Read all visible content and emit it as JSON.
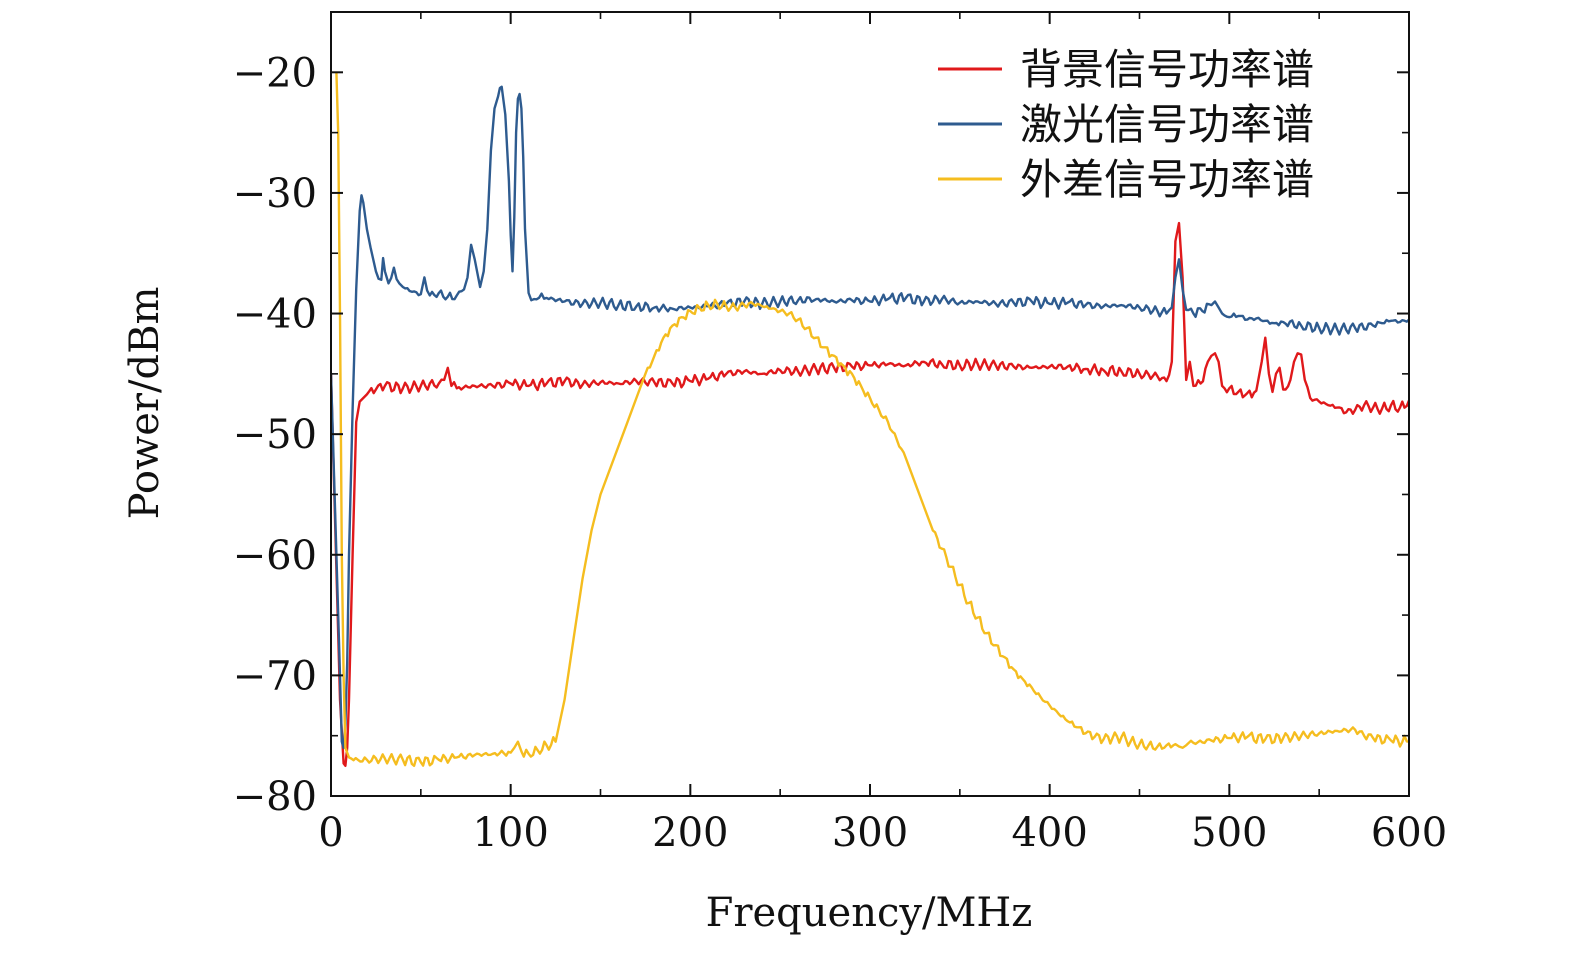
{
  "chart_data": {
    "type": "line",
    "xlabel": "Frequency/MHz",
    "ylabel": "Power/dBm",
    "xlim": [
      0,
      600
    ],
    "ylim": [
      -80,
      -15
    ],
    "xticks": [
      0,
      100,
      200,
      300,
      400,
      500,
      600
    ],
    "xtick_labels": [
      "0",
      "100",
      "200",
      "300",
      "400",
      "500",
      "600"
    ],
    "yticks": [
      -20,
      -30,
      -40,
      -50,
      -60,
      -70,
      -80
    ],
    "ytick_labels": [
      "−20",
      "−30",
      "−40",
      "−50",
      "−60",
      "−70",
      "−80"
    ],
    "grid": false,
    "legend_position": "top-right",
    "series": [
      {
        "name": "背景信号功率谱",
        "color": "#e0191b",
        "x": [
          0,
          5,
          7,
          8,
          9,
          10,
          12,
          14,
          16,
          18,
          20,
          25,
          30,
          40,
          50,
          60,
          63,
          65,
          67,
          70,
          80,
          90,
          100,
          110,
          120,
          130,
          140,
          150,
          160,
          170,
          180,
          190,
          200,
          210,
          220,
          230,
          240,
          250,
          260,
          270,
          280,
          290,
          300,
          310,
          320,
          330,
          340,
          350,
          360,
          370,
          380,
          390,
          400,
          410,
          420,
          430,
          440,
          450,
          460,
          465,
          468,
          470,
          472,
          474,
          476,
          478,
          480,
          484,
          488,
          490,
          492,
          494,
          496,
          500,
          505,
          510,
          515,
          518,
          520,
          522,
          524,
          526,
          528,
          530,
          534,
          536,
          538,
          540,
          542,
          545,
          550,
          555,
          560,
          565,
          570,
          575,
          580,
          585,
          590,
          595,
          600
        ],
        "y": [
          -45,
          -72,
          -77.3,
          -77.5,
          -76,
          -72,
          -60,
          -49,
          -47.3,
          -47,
          -46.7,
          -46.3,
          -46,
          -46.2,
          -46,
          -45.8,
          -45.5,
          -44.5,
          -46,
          -46.2,
          -46,
          -46,
          -45.8,
          -46,
          -45.8,
          -45.6,
          -45.9,
          -45.7,
          -45.8,
          -45.6,
          -45.7,
          -45.8,
          -45.6,
          -45.4,
          -45,
          -44.8,
          -45,
          -44.7,
          -44.8,
          -44.6,
          -44.5,
          -44.4,
          -44.3,
          -44.2,
          -44.3,
          -44,
          -44.2,
          -44.3,
          -44.2,
          -44.3,
          -44.4,
          -44.5,
          -44.4,
          -44.4,
          -44.6,
          -44.7,
          -44.8,
          -45,
          -45.2,
          -45.6,
          -44,
          -34,
          -32.5,
          -37,
          -45.5,
          -44,
          -46,
          -45.8,
          -44,
          -43.5,
          -43.3,
          -44,
          -46,
          -46.2,
          -46.5,
          -46.6,
          -46.4,
          -44,
          -42,
          -45,
          -46.5,
          -45,
          -44.5,
          -46.3,
          -45.5,
          -44,
          -43.3,
          -43.4,
          -45.5,
          -47,
          -47.3,
          -47.6,
          -47.8,
          -48.2,
          -48,
          -47.6,
          -47.8,
          -47.9,
          -47.6,
          -47.8,
          -47.2
        ]
      },
      {
        "name": "激光信号功率谱",
        "color": "#2e5b8f",
        "x": [
          0,
          5,
          6,
          7,
          8,
          9,
          10,
          12,
          14,
          16,
          17,
          18,
          20,
          22,
          25,
          28,
          29,
          30,
          32,
          35,
          38,
          40,
          45,
          50,
          52,
          55,
          60,
          65,
          70,
          74,
          76,
          78,
          80,
          83,
          85,
          87,
          89,
          91,
          93,
          94,
          95,
          97,
          99,
          100,
          101,
          102,
          103,
          104,
          105,
          106,
          107,
          108,
          110,
          113,
          120,
          130,
          140,
          150,
          160,
          170,
          180,
          190,
          200,
          210,
          220,
          230,
          240,
          250,
          260,
          270,
          280,
          290,
          300,
          310,
          320,
          330,
          340,
          350,
          360,
          370,
          380,
          390,
          400,
          410,
          420,
          430,
          440,
          450,
          460,
          465,
          468,
          470,
          472,
          474,
          476,
          480,
          485,
          490,
          492,
          494,
          496,
          500,
          505,
          510,
          515,
          520,
          525,
          530,
          540,
          550,
          560,
          570,
          580,
          585,
          590,
          595,
          600
        ],
        "y": [
          -45,
          -70,
          -75.5,
          -76,
          -74,
          -69,
          -60,
          -48,
          -38,
          -31.5,
          -30.2,
          -30.8,
          -33,
          -34.5,
          -36.5,
          -37.2,
          -35.4,
          -36.5,
          -37.5,
          -36.2,
          -37.5,
          -37.8,
          -38.2,
          -38.4,
          -37,
          -38.5,
          -38.3,
          -38.6,
          -38.5,
          -38,
          -37,
          -34.3,
          -35.5,
          -37.8,
          -36.5,
          -33,
          -26.5,
          -23,
          -22,
          -21.3,
          -21.2,
          -23.5,
          -29,
          -33.5,
          -36.5,
          -32,
          -25,
          -22.2,
          -21.8,
          -23,
          -27,
          -33,
          -38.3,
          -38.8,
          -38.7,
          -39,
          -39.2,
          -39.1,
          -39.3,
          -39.4,
          -39.5,
          -39.6,
          -39.5,
          -39.4,
          -39.2,
          -39,
          -39.2,
          -39,
          -38.9,
          -38.8,
          -39,
          -38.9,
          -39,
          -38.8,
          -38.7,
          -39,
          -38.8,
          -39.1,
          -39,
          -39.2,
          -39.1,
          -39,
          -39.2,
          -39.1,
          -39.3,
          -39.4,
          -39.3,
          -39.5,
          -39.8,
          -40,
          -39.5,
          -37,
          -35.5,
          -38,
          -39.7,
          -40,
          -39.8,
          -39.3,
          -39,
          -39.5,
          -40,
          -40.3,
          -40.2,
          -40.5,
          -40.4,
          -40.6,
          -40.8,
          -40.7,
          -41,
          -41.2,
          -41.3,
          -41.2,
          -41,
          -40.8,
          -40.6,
          -40.7,
          -40.5
        ]
      },
      {
        "name": "外差信号功率谱",
        "color": "#f5bd1f",
        "x": [
          3,
          4,
          5,
          6,
          7,
          8,
          10,
          15,
          20,
          30,
          40,
          50,
          60,
          70,
          80,
          90,
          100,
          102,
          104,
          106,
          110,
          115,
          120,
          125,
          130,
          135,
          140,
          145,
          150,
          155,
          160,
          165,
          170,
          175,
          180,
          185,
          190,
          195,
          200,
          205,
          210,
          215,
          220,
          225,
          230,
          235,
          240,
          245,
          250,
          255,
          260,
          265,
          270,
          275,
          280,
          285,
          290,
          295,
          300,
          305,
          310,
          315,
          320,
          325,
          330,
          335,
          340,
          345,
          350,
          355,
          360,
          365,
          370,
          375,
          380,
          385,
          390,
          395,
          400,
          405,
          410,
          415,
          420,
          425,
          430,
          435,
          440,
          445,
          450,
          455,
          460,
          465,
          470,
          472,
          474,
          476,
          480,
          490,
          500,
          510,
          520,
          530,
          540,
          550,
          560,
          570,
          575,
          580,
          590,
          600
        ],
        "y": [
          -20,
          -25,
          -40,
          -60,
          -70,
          -76,
          -76.8,
          -77,
          -77,
          -76.9,
          -77,
          -77.2,
          -77,
          -76.8,
          -76.6,
          -76.5,
          -76.4,
          -76,
          -75.5,
          -76.3,
          -76.5,
          -76.2,
          -75.8,
          -75.5,
          -72,
          -67,
          -62,
          -58,
          -55,
          -53,
          -51,
          -49,
          -47,
          -45,
          -43.5,
          -42,
          -41,
          -40.3,
          -39.8,
          -39.5,
          -39.3,
          -39.2,
          -39.4,
          -39.5,
          -39.3,
          -39.2,
          -39.4,
          -39.6,
          -39.8,
          -40,
          -40.5,
          -41.2,
          -42,
          -42.8,
          -43.5,
          -44.3,
          -45,
          -46,
          -47,
          -48,
          -49,
          -50.5,
          -52,
          -54,
          -56,
          -58,
          -59.5,
          -61,
          -62.5,
          -64,
          -65.2,
          -66.5,
          -67.5,
          -68.5,
          -69.5,
          -70.3,
          -71,
          -71.8,
          -72.5,
          -73.2,
          -73.8,
          -74.3,
          -74.8,
          -75.1,
          -75.3,
          -75.2,
          -75.1,
          -75.5,
          -75.7,
          -75.8,
          -75.9,
          -75.8,
          -75.7,
          -75.9,
          -76,
          -75.8,
          -75.6,
          -75.4,
          -75.2,
          -75.1,
          -75.3,
          -75.2,
          -75,
          -74.8,
          -74.6,
          -74.5,
          -75,
          -75.2,
          -75.4,
          -75.5
        ]
      }
    ]
  }
}
